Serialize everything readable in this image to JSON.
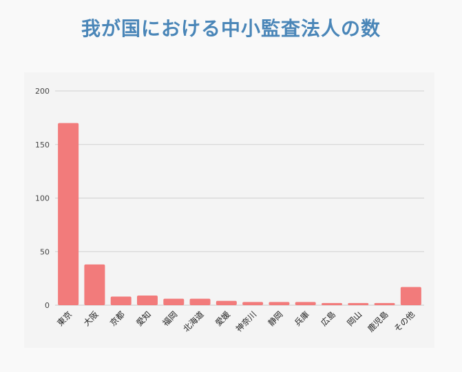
{
  "title": "我が国における中小監査法人の数",
  "colors": {
    "title": "#4a86b8",
    "bar": "#f27b7b",
    "grid": "#d0d0d0",
    "panel": "#f4f4f4"
  },
  "chart_data": {
    "type": "bar",
    "title": "我が国における中小監査法人の数",
    "xlabel": "",
    "ylabel": "",
    "categories": [
      "東京",
      "大阪",
      "京都",
      "愛知",
      "福岡",
      "北海道",
      "愛媛",
      "神奈川",
      "静岡",
      "兵庫",
      "広島",
      "岡山",
      "鹿児島",
      "その他"
    ],
    "values": [
      170,
      38,
      8,
      9,
      6,
      6,
      4,
      3,
      3,
      3,
      2,
      2,
      2,
      17
    ],
    "ylim": [
      0,
      200
    ],
    "yticks": [
      0,
      50,
      100,
      150,
      200
    ],
    "grid": true,
    "legend": "none"
  }
}
